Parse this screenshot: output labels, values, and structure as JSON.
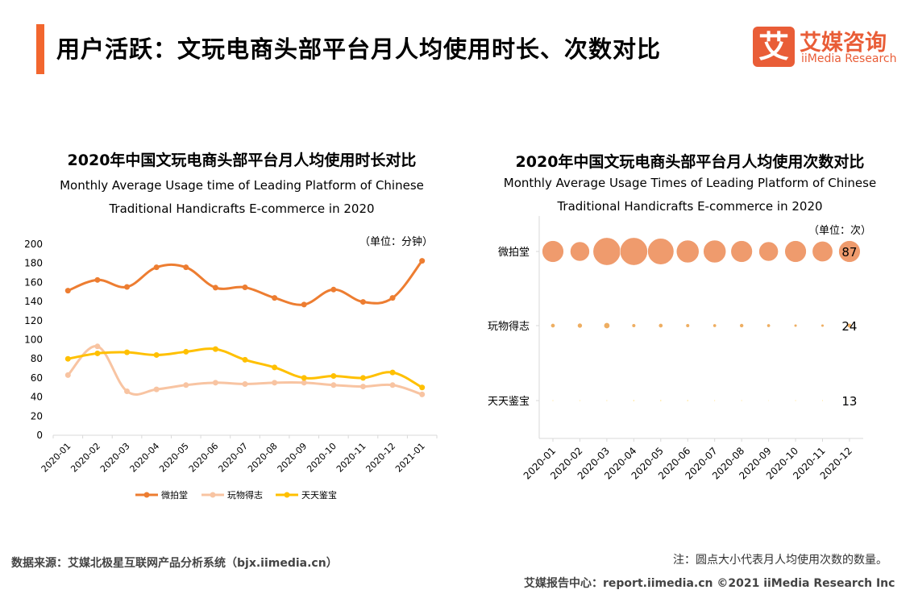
{
  "header": {
    "title": "用户活跃：文玩电商头部平台月人均使用时长、次数对比",
    "accent": "#f2662e"
  },
  "logo": {
    "mark": "艾",
    "name_cn": "艾媒咨询",
    "name_en": "iiMedia Research",
    "color": "#e95d37"
  },
  "chart_data": [
    {
      "type": "line",
      "title": "2020年中国文玩电商头部平台月人均使用时长对比",
      "subtitle": [
        "Monthly Average Usage time of Leading Platform of Chinese",
        "Traditional Handicrafts E-commerce in 2020"
      ],
      "unit": "（单位：分钟）",
      "ylim": [
        0,
        200
      ],
      "yticks": [
        0,
        20,
        40,
        60,
        80,
        100,
        120,
        140,
        160,
        180,
        200
      ],
      "categories": [
        "2020-01",
        "2020-02",
        "2020-03",
        "2020-04",
        "2020-05",
        "2020-06",
        "2020-07",
        "2020-08",
        "2020-09",
        "2020-10",
        "2020-11",
        "2020-12",
        "2021-01"
      ],
      "legend": "bottom",
      "series": [
        {
          "name": "微拍堂",
          "color": "#ed7d31",
          "values": [
            151.4,
            162.6,
            155.3,
            175.8,
            175.8,
            154.5,
            154.8,
            143.8,
            136.8,
            152.5,
            139.6,
            143.8,
            182.6
          ]
        },
        {
          "name": "玩物得志",
          "color": "#f8c4a2",
          "values": [
            63,
            93,
            46,
            48,
            52.5,
            55,
            53.6,
            55,
            55,
            52.5,
            51,
            52.5,
            42.7
          ]
        },
        {
          "name": "天天鉴宝",
          "color": "#ffc000",
          "values": [
            80,
            85.7,
            86.8,
            84,
            87.4,
            90.2,
            79,
            71,
            60,
            62,
            60,
            65.7,
            50
          ]
        }
      ]
    },
    {
      "type": "bubble",
      "title": "2020年中国文玩电商头部平台月人均使用次数对比",
      "subtitle": [
        "Monthly Average Usage Times of Leading Platform of Chinese",
        "Traditional Handicrafts E-commerce in 2020"
      ],
      "unit": "（单位：次）",
      "categories": [
        "2020-01",
        "2020-02",
        "2020-03",
        "2020-04",
        "2020-05",
        "2020-06",
        "2020-07",
        "2020-08",
        "2020-09",
        "2020-10",
        "2020-11",
        "2020-12"
      ],
      "series": [
        {
          "name": "微拍堂",
          "color": "#ef9b6d",
          "values": [
            87,
            79,
            109,
            109,
            104,
            91,
            91,
            87,
            79,
            87,
            83,
            87
          ],
          "label": "87"
        },
        {
          "name": "玩物得志",
          "color": "#eeae62",
          "values": [
            24,
            26,
            30,
            22,
            24,
            22,
            21,
            23,
            21,
            19,
            19,
            24
          ],
          "label": "24"
        },
        {
          "name": "天天鉴宝",
          "color": "#ffd966",
          "values": [
            13,
            13,
            13,
            14,
            14,
            14,
            13,
            13,
            12,
            13,
            13,
            13
          ],
          "label": "13"
        }
      ]
    }
  ],
  "footer": {
    "source": "数据来源：艾媒北极星互联网产品分析系统（bjx.iimedia.cn）",
    "note": "注：圆点大小代表月人均使用次数的数量。",
    "site": "艾媒报告中心：report.iimedia.cn  ©2021  iiMedia Research  Inc"
  }
}
